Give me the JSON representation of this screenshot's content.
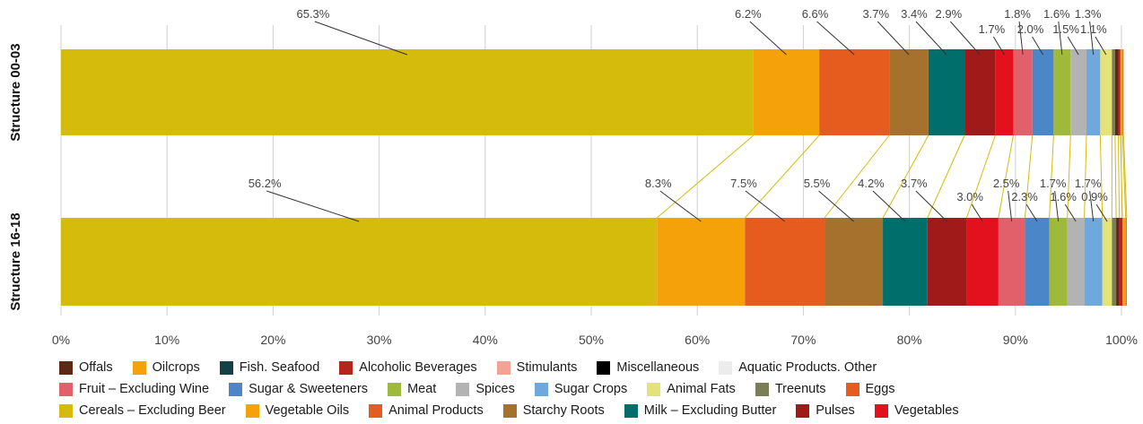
{
  "chart_data": {
    "type": "bar",
    "orientation": "horizontal",
    "stacked": true,
    "normalized": true,
    "xlim": [
      0,
      100
    ],
    "x_ticks": [
      "0%",
      "10%",
      "20%",
      "30%",
      "40%",
      "50%",
      "60%",
      "70%",
      "80%",
      "90%",
      "100%"
    ],
    "grid": true,
    "legend_position": "bottom",
    "categories": [
      "Structure 00-03",
      "Structure 16-18"
    ],
    "series": [
      {
        "name": "Cereals – Excluding Beer",
        "color": "#d4bb0c",
        "values": [
          65.3,
          56.2
        ],
        "labels": [
          "65.3%",
          "56.2%"
        ]
      },
      {
        "name": "Oilcrops",
        "color": "#f5a20a",
        "values": [
          6.2,
          8.3
        ],
        "labels": [
          "6.2%",
          "8.3%"
        ]
      },
      {
        "name": "Eggs",
        "color": "#e65c1e",
        "values": [
          6.6,
          7.5
        ],
        "labels": [
          "6.6%",
          "7.5%"
        ]
      },
      {
        "name": "Starchy Roots",
        "color": "#a6712c",
        "values": [
          3.7,
          5.5
        ],
        "labels": [
          "3.7%",
          "5.5%"
        ]
      },
      {
        "name": "Milk – Excluding Butter",
        "color": "#006e6a",
        "values": [
          3.4,
          4.2
        ],
        "labels": [
          "3.4%",
          "4.2%"
        ]
      },
      {
        "name": "Pulses",
        "color": "#a11a1a",
        "values": [
          2.9,
          3.7
        ],
        "labels": [
          "2.9%",
          "3.7%"
        ]
      },
      {
        "name": "Vegetables",
        "color": "#e3101d",
        "values": [
          1.7,
          3.0
        ],
        "labels": [
          "1.7%",
          "3.0%"
        ]
      },
      {
        "name": "Fruit – Excluding Wine",
        "color": "#e2606a",
        "values": [
          1.8,
          2.5
        ],
        "labels": [
          "1.8%",
          "2.5%"
        ]
      },
      {
        "name": "Sugar & Sweeteners",
        "color": "#4a86c8",
        "values": [
          2.0,
          2.3
        ],
        "labels": [
          "2.0%",
          "2.3%"
        ]
      },
      {
        "name": "Meat",
        "color": "#9fba3a",
        "values": [
          1.6,
          1.7
        ],
        "labels": [
          "1.6%",
          "1.7%"
        ]
      },
      {
        "name": "Spices",
        "color": "#b3b3b3",
        "values": [
          1.5,
          1.6
        ],
        "labels": [
          "1.5%",
          "1.6%"
        ]
      },
      {
        "name": "Sugar Crops",
        "color": "#6fa8dc",
        "values": [
          1.3,
          1.7
        ],
        "labels": [
          "1.3%",
          "1.7%"
        ]
      },
      {
        "name": "Animal Fats",
        "color": "#e3e37a",
        "values": [
          1.1,
          0.9
        ],
        "labels": [
          "1.1%",
          "0.9%"
        ]
      },
      {
        "name": "Treenuts",
        "color": "#7b7d57",
        "values": [
          0.3,
          0.4
        ],
        "labels": [
          "",
          ""
        ]
      },
      {
        "name": "Offals",
        "color": "#5c2a14",
        "values": [
          0.3,
          0.3
        ],
        "labels": [
          "",
          ""
        ]
      },
      {
        "name": "Alcoholic Beverages",
        "color": "#b8231b",
        "values": [
          0.2,
          0.3
        ],
        "labels": [
          "",
          ""
        ]
      },
      {
        "name": "Vegetable Oils",
        "color": "#f5a20a",
        "values": [
          0.2,
          0.3
        ],
        "labels": [
          "",
          ""
        ]
      },
      {
        "name": "Animal Products",
        "color": "#e65c1e",
        "values": [
          0.1,
          0.1
        ],
        "labels": [
          "",
          ""
        ]
      }
    ],
    "legend": [
      [
        {
          "name": "Offals",
          "color": "#5c2a14"
        },
        {
          "name": "Oilcrops",
          "color": "#f5a20a"
        },
        {
          "name": "Fish. Seafood",
          "color": "#164048"
        },
        {
          "name": "Alcoholic Beverages",
          "color": "#b8231b"
        },
        {
          "name": "Stimulants",
          "color": "#f4a294"
        },
        {
          "name": "Miscellaneous",
          "color": "#000000"
        },
        {
          "name": "Aquatic Products. Other",
          "color": "#ececec"
        }
      ],
      [
        {
          "name": "Fruit – Excluding Wine",
          "color": "#e2606a"
        },
        {
          "name": "Sugar & Sweeteners",
          "color": "#4a86c8"
        },
        {
          "name": "Meat",
          "color": "#9fba3a"
        },
        {
          "name": "Spices",
          "color": "#b3b3b3"
        },
        {
          "name": "Sugar Crops",
          "color": "#6fa8dc"
        },
        {
          "name": "Animal Fats",
          "color": "#e3e37a"
        },
        {
          "name": "Treenuts",
          "color": "#7b7d57"
        },
        {
          "name": "Eggs",
          "color": "#e65c1e"
        }
      ],
      [
        {
          "name": "Cereals – Excluding Beer",
          "color": "#d4bb0c"
        },
        {
          "name": "Vegetable Oils",
          "color": "#f5a20a"
        },
        {
          "name": "Animal Products",
          "color": "#e65c1e"
        },
        {
          "name": "Starchy Roots",
          "color": "#a6712c"
        },
        {
          "name": "Milk – Excluding Butter",
          "color": "#006e6a"
        },
        {
          "name": "Pulses",
          "color": "#a11a1a"
        },
        {
          "name": "Vegetables",
          "color": "#e3101d"
        }
      ]
    ]
  }
}
